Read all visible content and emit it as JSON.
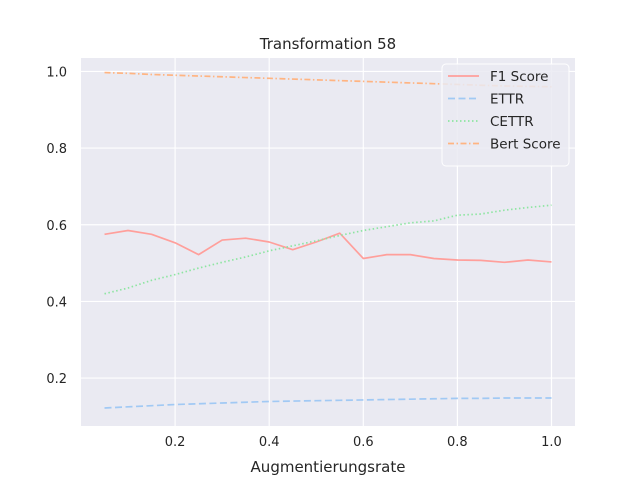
{
  "chart_data": {
    "type": "line",
    "title": "Transformation 58",
    "xlabel": "Augmentierungsrate",
    "ylabel": "",
    "xlim": [
      0.0,
      1.05
    ],
    "ylim": [
      0.075,
      1.035
    ],
    "xticks": [
      0.2,
      0.4,
      0.6,
      0.8,
      1.0
    ],
    "xtick_labels": [
      "0.2",
      "0.4",
      "0.6",
      "0.8",
      "1.0"
    ],
    "yticks": [
      0.2,
      0.4,
      0.6,
      0.8,
      1.0
    ],
    "ytick_labels": [
      "0.2",
      "0.4",
      "0.6",
      "0.8",
      "1.0"
    ],
    "grid": true,
    "background": "#eaeaf2",
    "legend_position": "top-right",
    "x": [
      0.05,
      0.1,
      0.15,
      0.2,
      0.25,
      0.3,
      0.35,
      0.4,
      0.45,
      0.5,
      0.55,
      0.6,
      0.65,
      0.7,
      0.75,
      0.8,
      0.85,
      0.9,
      0.95,
      1.0
    ],
    "series": [
      {
        "name": "F1 Score",
        "color": "#ff9f9b",
        "dash": "solid",
        "values": [
          0.575,
          0.585,
          0.575,
          0.553,
          0.522,
          0.56,
          0.565,
          0.555,
          0.535,
          0.555,
          0.578,
          0.512,
          0.522,
          0.522,
          0.512,
          0.508,
          0.507,
          0.502,
          0.508,
          0.503
        ]
      },
      {
        "name": "ETTR",
        "color": "#a1c9f4",
        "dash": "dashed",
        "values": [
          0.122,
          0.125,
          0.128,
          0.131,
          0.133,
          0.135,
          0.137,
          0.139,
          0.14,
          0.141,
          0.142,
          0.143,
          0.144,
          0.145,
          0.146,
          0.147,
          0.147,
          0.148,
          0.148,
          0.148
        ]
      },
      {
        "name": "CETTR",
        "color": "#8de5a1",
        "dash": "dotted",
        "values": [
          0.42,
          0.435,
          0.455,
          0.47,
          0.487,
          0.502,
          0.516,
          0.532,
          0.545,
          0.558,
          0.572,
          0.585,
          0.595,
          0.605,
          0.61,
          0.625,
          0.628,
          0.638,
          0.645,
          0.651
        ]
      },
      {
        "name": "Bert Score",
        "color": "#ffb482",
        "dash": "dashdot",
        "values": [
          0.997,
          0.995,
          0.992,
          0.99,
          0.988,
          0.986,
          0.984,
          0.982,
          0.98,
          0.978,
          0.976,
          0.974,
          0.972,
          0.97,
          0.968,
          0.966,
          0.964,
          0.962,
          0.961,
          0.96
        ]
      }
    ]
  }
}
